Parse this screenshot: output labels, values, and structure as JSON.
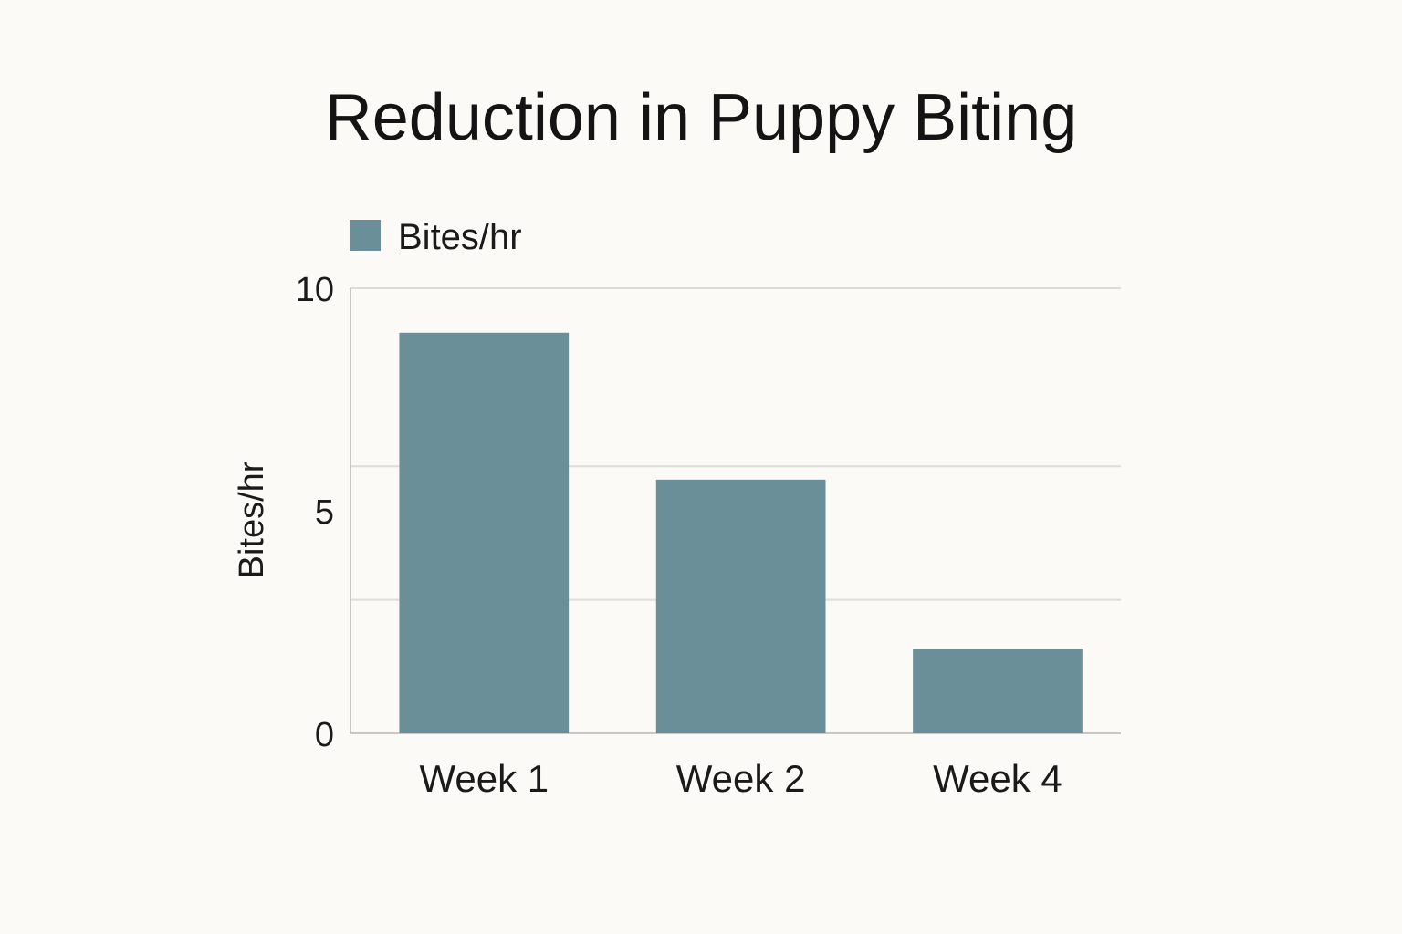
{
  "chart_data": {
    "type": "bar",
    "title": "Reduction in Puppy Biting",
    "xlabel": "",
    "ylabel": "Bites/hr",
    "categories": [
      "Week 1",
      "Week 2",
      "Week 4"
    ],
    "series": [
      {
        "name": "Bites/hr",
        "values": [
          9.0,
          5.7,
          1.9
        ],
        "color": "#6a8f98"
      }
    ],
    "ylim": [
      0,
      10
    ],
    "yticks": [
      {
        "value": 0,
        "label": "0"
      },
      {
        "value": 5,
        "label": "5"
      },
      {
        "value": 10,
        "label": "10"
      }
    ],
    "gridlines": [
      3,
      6,
      10
    ],
    "grid": true,
    "legend": "top-left"
  }
}
